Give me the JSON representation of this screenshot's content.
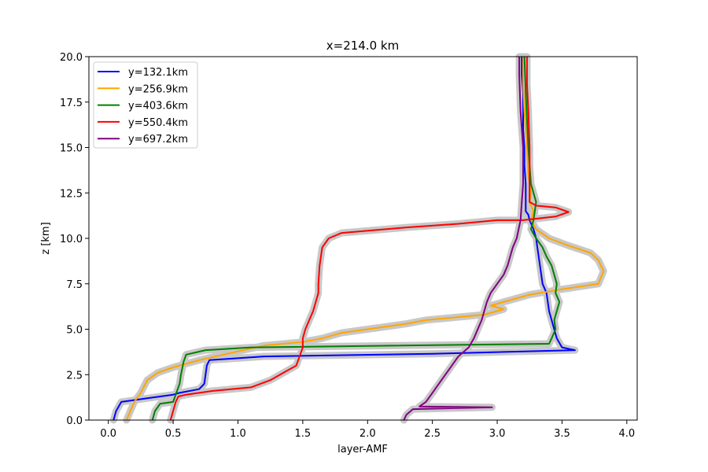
{
  "chart_data": {
    "type": "line",
    "title": "x=214.0 km",
    "xlabel": "layer-AMF",
    "ylabel": "z [km]",
    "xlim": [
      -0.15,
      4.08
    ],
    "ylim": [
      0,
      20
    ],
    "xticks": [
      0.0,
      0.5,
      1.0,
      1.5,
      2.0,
      2.5,
      3.0,
      3.5,
      4.0
    ],
    "yticks": [
      0.0,
      2.5,
      5.0,
      7.5,
      10.0,
      12.5,
      15.0,
      17.5,
      20.0
    ],
    "xtick_labels": [
      "0.0",
      "0.5",
      "1.0",
      "1.5",
      "2.0",
      "2.5",
      "3.0",
      "3.5",
      "4.0"
    ],
    "ytick_labels": [
      "0.0",
      "2.5",
      "5.0",
      "7.5",
      "10.0",
      "12.5",
      "15.0",
      "17.5",
      "20.0"
    ],
    "grid": false,
    "legend_position": "upper-left",
    "uncertainty_color": "#c8c8c8",
    "series": [
      {
        "name": "y=132.1km",
        "color": "#0000ff",
        "x": [
          0.04,
          0.06,
          0.1,
          0.3,
          0.5,
          0.55,
          0.7,
          0.74,
          0.75,
          0.76,
          0.78,
          1.2,
          2.5,
          3.6,
          3.5,
          3.46,
          3.44,
          3.42,
          3.4,
          3.38,
          3.35,
          3.33,
          3.31,
          3.3,
          3.28,
          3.25,
          3.24,
          3.22,
          3.22,
          3.22,
          3.21,
          3.21,
          3.2,
          3.2,
          3.19,
          3.19
        ],
        "y": [
          0,
          0.5,
          1.0,
          1.2,
          1.4,
          1.5,
          1.7,
          2.0,
          2.5,
          3.0,
          3.3,
          3.5,
          3.65,
          3.85,
          4.0,
          4.5,
          5.0,
          5.5,
          6.0,
          7.0,
          7.5,
          8.5,
          9.5,
          10.0,
          10.5,
          11.0,
          11.3,
          11.5,
          12.5,
          13.0,
          14.0,
          15.0,
          16.0,
          18.0,
          19.0,
          20.0
        ]
      },
      {
        "name": "y=256.9km",
        "color": "#ffa500",
        "x": [
          0.14,
          0.17,
          0.2,
          0.25,
          0.3,
          0.38,
          0.5,
          0.7,
          0.95,
          1.2,
          1.5,
          1.65,
          1.8,
          2.0,
          2.3,
          2.45,
          2.6,
          2.9,
          3.05,
          2.95,
          3.1,
          3.25,
          3.5,
          3.78,
          3.82,
          3.78,
          3.72,
          3.55,
          3.4,
          3.3,
          3.26,
          3.28,
          3.25,
          3.26,
          3.24,
          3.23,
          3.21,
          3.2,
          3.2
        ],
        "y": [
          0,
          0.5,
          1.0,
          1.5,
          2.2,
          2.6,
          2.9,
          3.3,
          3.7,
          4.1,
          4.3,
          4.5,
          4.8,
          5.0,
          5.3,
          5.5,
          5.6,
          5.8,
          6.1,
          6.3,
          6.6,
          6.9,
          7.2,
          7.5,
          8.2,
          8.8,
          9.2,
          9.6,
          10.0,
          10.5,
          11.0,
          11.5,
          12.0,
          12.5,
          13.5,
          15.0,
          17.0,
          18.5,
          20.0
        ]
      },
      {
        "name": "y=403.6km",
        "color": "#008000",
        "x": [
          0.34,
          0.36,
          0.4,
          0.5,
          0.55,
          0.56,
          0.58,
          0.6,
          0.75,
          1.1,
          3.4,
          3.42,
          3.45,
          3.44,
          3.46,
          3.48,
          3.45,
          3.46,
          3.44,
          3.42,
          3.38,
          3.35,
          3.3,
          3.26,
          3.28,
          3.3,
          3.26,
          3.25,
          3.24,
          3.23,
          3.22,
          3.21
        ],
        "y": [
          0,
          0.5,
          0.9,
          1.0,
          2.0,
          2.5,
          3.2,
          3.6,
          3.85,
          4.0,
          4.2,
          4.5,
          5.0,
          5.5,
          6.0,
          6.5,
          7.0,
          7.5,
          8.0,
          8.5,
          9.0,
          9.5,
          10.0,
          10.5,
          11.0,
          12.0,
          13.0,
          14.0,
          15.0,
          16.5,
          18.0,
          20.0
        ]
      },
      {
        "name": "y=550.4km",
        "color": "#ff0000",
        "x": [
          0.48,
          0.5,
          0.52,
          0.54,
          0.6,
          0.8,
          1.1,
          1.25,
          1.35,
          1.45,
          1.5,
          1.5,
          1.52,
          1.55,
          1.58,
          1.6,
          1.62,
          1.62,
          1.63,
          1.65,
          1.7,
          1.8,
          2.3,
          2.7,
          3.0,
          3.2,
          3.45,
          3.55,
          3.45,
          3.3,
          3.25,
          3.25,
          3.25,
          3.24,
          3.23,
          3.23
        ],
        "y": [
          0,
          0.5,
          1.0,
          1.3,
          1.4,
          1.6,
          1.8,
          2.2,
          2.6,
          3.0,
          4.0,
          4.5,
          5.0,
          5.5,
          6.0,
          6.5,
          7.0,
          7.5,
          8.5,
          9.5,
          10.0,
          10.3,
          10.6,
          10.8,
          11.0,
          11.0,
          11.2,
          11.45,
          11.7,
          11.8,
          12.0,
          13.0,
          15.0,
          17.0,
          18.5,
          20.0
        ]
      },
      {
        "name": "y=697.2km",
        "color": "#800080",
        "x": [
          2.28,
          2.3,
          2.35,
          2.96,
          2.4,
          2.45,
          2.5,
          2.55,
          2.6,
          2.65,
          2.7,
          2.78,
          2.82,
          2.85,
          2.88,
          2.9,
          2.92,
          2.95,
          3.0,
          3.05,
          3.08,
          3.1,
          3.12,
          3.15,
          3.18,
          3.19,
          3.2,
          3.2,
          3.18,
          3.17,
          3.17
        ],
        "y": [
          0,
          0.3,
          0.6,
          0.7,
          0.75,
          1.0,
          1.5,
          2.0,
          2.5,
          3.0,
          3.5,
          4.0,
          4.5,
          5.0,
          5.5,
          6.0,
          6.5,
          7.0,
          7.5,
          8.0,
          8.5,
          9.0,
          9.5,
          10.0,
          11.0,
          12.0,
          13.0,
          15.0,
          17.0,
          19.0,
          20.0
        ]
      }
    ]
  }
}
